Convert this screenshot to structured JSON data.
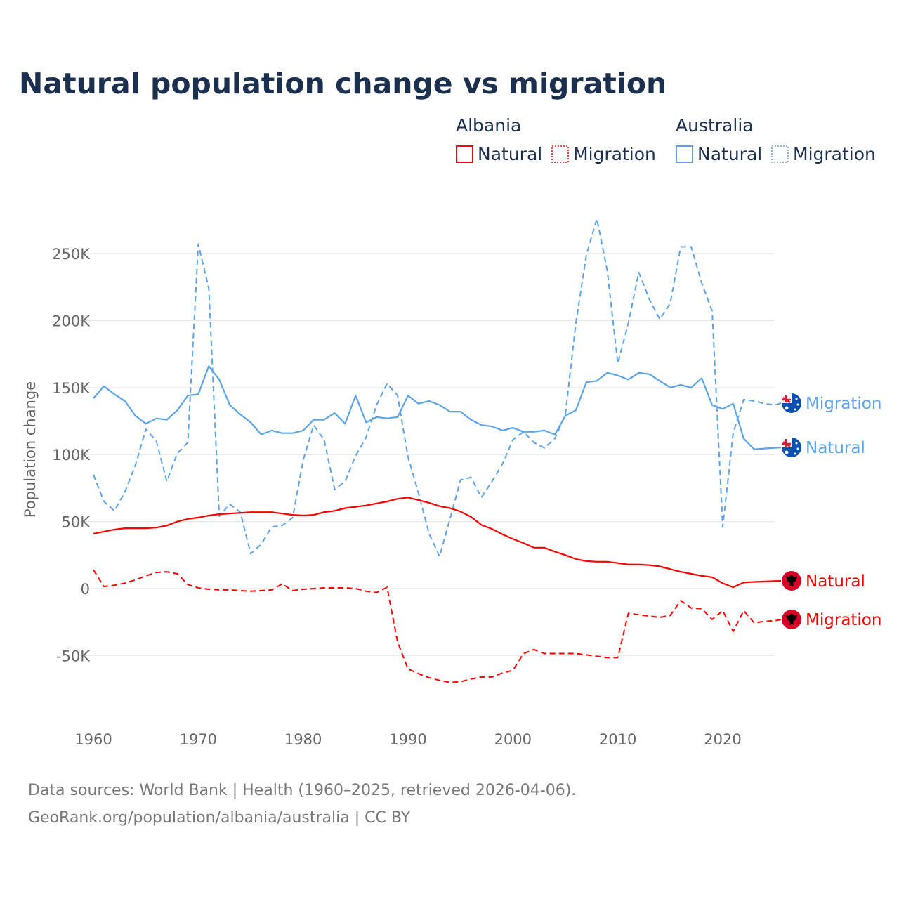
{
  "chart_data": {
    "type": "line",
    "title": "Natural population change vs migration",
    "xlabel": "",
    "ylabel": "Population change",
    "xlim": [
      1960,
      2025
    ],
    "ylim": [
      -100000,
      275000
    ],
    "x_ticks": [
      "1960",
      "1970",
      "1980",
      "1990",
      "2000",
      "2010",
      "2020"
    ],
    "y_ticks": [
      {
        "v": 250000,
        "label": "250K"
      },
      {
        "v": 200000,
        "label": "200K"
      },
      {
        "v": 150000,
        "label": "150K"
      },
      {
        "v": 100000,
        "label": "100K"
      },
      {
        "v": 50000,
        "label": "50K"
      },
      {
        "v": 0,
        "label": "0"
      },
      {
        "v": -50000,
        "label": "-50K"
      }
    ],
    "grid": true,
    "legend_placement": "top-right",
    "legend_groups": [
      {
        "country": "Albania",
        "items": [
          "Natural",
          "Migration"
        ]
      },
      {
        "country": "Australia",
        "items": [
          "Natural",
          "Migration"
        ]
      }
    ],
    "colors": {
      "Albania": "#ff0000",
      "Australia": "#5ba4ea"
    },
    "series": [
      {
        "name": "Australia Migration",
        "country": "Australia",
        "kind": "Migration",
        "dash": true,
        "start": 1960,
        "end_label": "Migration",
        "values": [
          85,
          65,
          58,
          72,
          92,
          119,
          110,
          80,
          101,
          109,
          257,
          224,
          54,
          63,
          57,
          26,
          33,
          46,
          47,
          53,
          96,
          122,
          111,
          74,
          80,
          99,
          113,
          137,
          153,
          144,
          98,
          71,
          41,
          24,
          52,
          81,
          83,
          68,
          80,
          93,
          111,
          117,
          109,
          105,
          112,
          130,
          198,
          249,
          276,
          237,
          168,
          198,
          236,
          216,
          201,
          213,
          255,
          255,
          228,
          207,
          46,
          116,
          141,
          140,
          138,
          137
        ]
      },
      {
        "name": "Australia Natural",
        "country": "Australia",
        "kind": "Natural",
        "dash": false,
        "start": 1960,
        "end_label": "Natural",
        "values": [
          142,
          151,
          145,
          140,
          129,
          123,
          127,
          126,
          133,
          144,
          145,
          166,
          156,
          137,
          130,
          124,
          115,
          118,
          116,
          116,
          118,
          126,
          126,
          131,
          123,
          144,
          124,
          128,
          127,
          128,
          144,
          138,
          140,
          137,
          132,
          132,
          126,
          122,
          121,
          118,
          120,
          117,
          117,
          118,
          115,
          129,
          133,
          154,
          155,
          161,
          159,
          156,
          161,
          160,
          155,
          150,
          152,
          150,
          157,
          137,
          134,
          138,
          112,
          104
        ]
      },
      {
        "name": "Albania Natural",
        "country": "Albania",
        "kind": "Natural",
        "dash": false,
        "start": 1960,
        "end_label": "Natural",
        "values": [
          41,
          42.5,
          44,
          45,
          45,
          45,
          45.5,
          47,
          50,
          52,
          53,
          54.5,
          55.5,
          56,
          56.5,
          57,
          57,
          57,
          56,
          55,
          54.5,
          55,
          57,
          58,
          60,
          61,
          62,
          63.5,
          65,
          67,
          68,
          66,
          64,
          61.5,
          60,
          57.5,
          53.5,
          47.5,
          44.5,
          40.5,
          37,
          34,
          30.5,
          30.5,
          27.5,
          25,
          22,
          20.5,
          20,
          20,
          19,
          18,
          18,
          17.5,
          16.5,
          14.5,
          12.5,
          11,
          9.5,
          8.5,
          4,
          1,
          4.5,
          5
        ]
      },
      {
        "name": "Albania Migration",
        "country": "Albania",
        "kind": "Migration",
        "dash": true,
        "start": 1960,
        "end_label": "Migration",
        "values": [
          14,
          1.5,
          2.5,
          4,
          6.5,
          9.5,
          12,
          12.5,
          11,
          3,
          0.5,
          -0.5,
          -1,
          -1,
          -1.5,
          -2,
          -1.5,
          -1,
          3.5,
          -1.5,
          -0.5,
          0,
          0.5,
          0.5,
          0.5,
          0,
          -2,
          -3,
          1,
          -40,
          -60,
          -63.5,
          -66.5,
          -68.5,
          -70,
          -69.5,
          -67.5,
          -66,
          -66,
          -63,
          -61,
          -48.5,
          -45.5,
          -48.5,
          -48.5,
          -48.5,
          -48.5,
          -49.5,
          -50.5,
          -51.5,
          -51.5,
          -18.5,
          -19.5,
          -20.5,
          -21.5,
          -20,
          -9,
          -14.5,
          -15,
          -23,
          -16.5,
          -32,
          -16.5,
          -25.5,
          -24.5,
          -24
        ]
      }
    ],
    "value_unit_note": "values in thousands"
  },
  "footer": {
    "line1": "Data sources: World Bank | Health (1960–2025, retrieved 2026-04-06).",
    "line2": "GeoRank.org/population/albania/australia | CC BY"
  }
}
